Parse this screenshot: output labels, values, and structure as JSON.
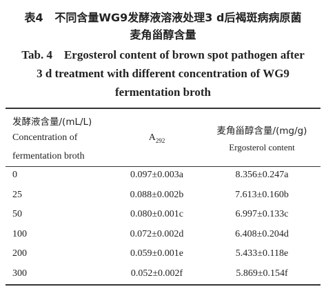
{
  "caption": {
    "zh_label": "表4",
    "zh_lines": [
      "不同含量WG9发酵液溶液处理3 d后褐斑病病原菌",
      "麦角甾醇含量"
    ],
    "en_label": "Tab. 4",
    "en_lines": [
      "Ergosterol content of brown spot pathogen after",
      "3 d treatment with different concentration of WG9",
      "fermentation broth"
    ]
  },
  "table": {
    "header": {
      "col0": [
        "发酵液含量/(mL/L)",
        "Concentration of",
        "fermentation broth"
      ],
      "col1": {
        "symbol": "A",
        "subscript": "292"
      },
      "col2": [
        "麦角甾醇含量/(mg/g)",
        "Ergosterol content"
      ]
    },
    "rows": [
      [
        "0",
        "0.097±0.003a",
        "8.356±0.247a"
      ],
      [
        "25",
        "0.088±0.002b",
        "7.613±0.160b"
      ],
      [
        "50",
        "0.080±0.001c",
        "6.997±0.133c"
      ],
      [
        "100",
        "0.072±0.002d",
        "6.408±0.204d"
      ],
      [
        "200",
        "0.059±0.001e",
        "5.433±0.118e"
      ],
      [
        "300",
        "0.052±0.002f",
        "5.869±0.154f"
      ]
    ]
  }
}
